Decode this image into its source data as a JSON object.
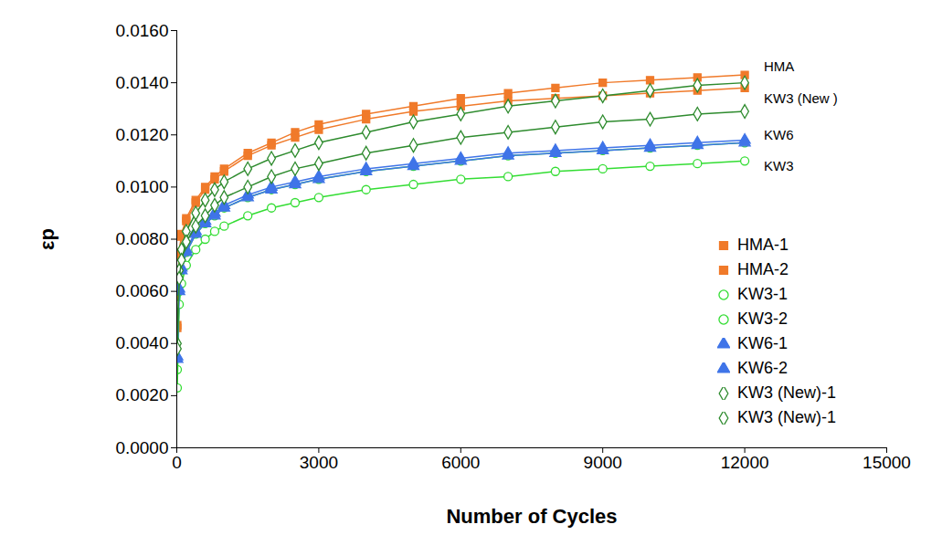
{
  "chart_data": {
    "type": "line",
    "x_label": "Number of Cycles",
    "y_label": "εp",
    "xlim": [
      0,
      15000
    ],
    "xticks": [
      0,
      3000,
      6000,
      9000,
      12000,
      15000
    ],
    "ylim": [
      0,
      0.016
    ],
    "yticks": [
      {
        "value": 0,
        "label": "0.0000"
      },
      {
        "value": 0.002,
        "label": "0.0020"
      },
      {
        "value": 0.004,
        "label": "0.0040"
      },
      {
        "value": 0.006,
        "label": "0.0060"
      },
      {
        "value": 0.008,
        "label": "0.0080"
      },
      {
        "value": 0.01,
        "label": "0.0100"
      },
      {
        "value": 0.012,
        "label": "0.0120"
      },
      {
        "value": 0.014,
        "label": "0.0140"
      },
      {
        "value": 0.016,
        "label": "0.0160"
      }
    ],
    "grid": false,
    "legend": "lower right",
    "annotations": [
      "HMA",
      "KW3 (New )",
      "KW6",
      "KW3"
    ],
    "x": [
      10,
      50,
      100,
      200,
      400,
      600,
      800,
      1000,
      1500,
      2000,
      2500,
      3000,
      4000,
      5000,
      6000,
      7000,
      8000,
      9000,
      10000,
      11000,
      12000
    ],
    "series": [
      {
        "name": "HMA-1",
        "color": "#f07a2a",
        "marker": "square",
        "values": [
          0.0047,
          0.0075,
          0.0082,
          0.0088,
          0.0095,
          0.01,
          0.0104,
          0.0107,
          0.0113,
          0.0117,
          0.0121,
          0.0124,
          0.0128,
          0.0131,
          0.0134,
          0.0136,
          0.0138,
          0.014,
          0.0141,
          0.0142,
          0.0143
        ]
      },
      {
        "name": "HMA-2",
        "color": "#f07a2a",
        "marker": "square",
        "values": [
          0.0046,
          0.0074,
          0.0081,
          0.0087,
          0.0094,
          0.0099,
          0.0103,
          0.0106,
          0.0112,
          0.0116,
          0.0119,
          0.0122,
          0.0126,
          0.0129,
          0.0131,
          0.0133,
          0.0134,
          0.0135,
          0.0136,
          0.0137,
          0.0138
        ]
      },
      {
        "name": "KW3-1",
        "color": "#33dd33",
        "marker": "circle-open",
        "values": [
          0.003,
          0.006,
          0.0068,
          0.0075,
          0.0082,
          0.0086,
          0.0089,
          0.0092,
          0.0096,
          0.0099,
          0.0101,
          0.0103,
          0.0106,
          0.0108,
          0.011,
          0.0112,
          0.0113,
          0.0114,
          0.0115,
          0.0116,
          0.0117
        ]
      },
      {
        "name": "KW3-2",
        "color": "#33dd33",
        "marker": "circle-open",
        "values": [
          0.0023,
          0.0055,
          0.0063,
          0.007,
          0.0076,
          0.008,
          0.0083,
          0.0085,
          0.0089,
          0.0092,
          0.0094,
          0.0096,
          0.0099,
          0.0101,
          0.0103,
          0.0104,
          0.0106,
          0.0107,
          0.0108,
          0.0109,
          0.011
        ]
      },
      {
        "name": "KW6-1",
        "color": "#3f74e8",
        "marker": "triangle",
        "values": [
          0.0035,
          0.0061,
          0.0069,
          0.0076,
          0.0083,
          0.0087,
          0.009,
          0.0093,
          0.0097,
          0.01,
          0.0102,
          0.0104,
          0.0107,
          0.0109,
          0.0111,
          0.0113,
          0.0114,
          0.0115,
          0.0116,
          0.0117,
          0.0118
        ]
      },
      {
        "name": "KW6-2",
        "color": "#3f74e8",
        "marker": "triangle",
        "values": [
          0.0034,
          0.006,
          0.0068,
          0.0075,
          0.0082,
          0.0086,
          0.0089,
          0.0092,
          0.0096,
          0.0099,
          0.0101,
          0.0103,
          0.0106,
          0.0108,
          0.011,
          0.0112,
          0.0113,
          0.0114,
          0.0115,
          0.0116,
          0.0117
        ]
      },
      {
        "name": "KW3 (New)-1",
        "color": "#2e8b2e",
        "marker": "diamond-open",
        "values": [
          0.004,
          0.0068,
          0.0076,
          0.0083,
          0.009,
          0.0095,
          0.0099,
          0.0102,
          0.0107,
          0.0111,
          0.0114,
          0.0117,
          0.0121,
          0.0125,
          0.0128,
          0.0131,
          0.0133,
          0.0135,
          0.0137,
          0.0139,
          0.014
        ]
      },
      {
        "name": "KW3 (New)-1",
        "color": "#2e8b2e",
        "marker": "diamond-open",
        "values": [
          0.0038,
          0.0065,
          0.0072,
          0.0079,
          0.0085,
          0.0089,
          0.0093,
          0.0096,
          0.01,
          0.0104,
          0.0107,
          0.0109,
          0.0113,
          0.0116,
          0.0119,
          0.0121,
          0.0123,
          0.0125,
          0.0126,
          0.0128,
          0.0129
        ]
      }
    ]
  }
}
